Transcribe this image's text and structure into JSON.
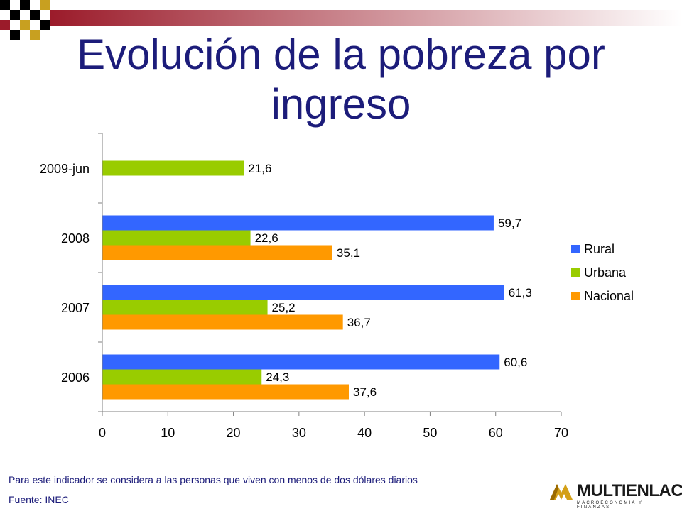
{
  "slide": {
    "title": "Evolución de la pobreza por ingreso",
    "note": "Para este indicador se considera a las personas que viven con menos de dos dólares diarios",
    "source": "Fuente: INEC",
    "logo_text": "MULTIENLACE",
    "logo_sub": "MACROECONOMIA Y FINANZAS"
  },
  "colors": {
    "title": "#1c1c7a",
    "rural": "#3366ff",
    "urbana": "#99cc00",
    "nacional": "#ff9900",
    "accent_red": "#9b1b2a",
    "accent_gold": "#c8a020"
  },
  "chart_data": {
    "type": "bar",
    "orientation": "horizontal",
    "categories": [
      "2009-jun",
      "2008",
      "2007",
      "2006"
    ],
    "series": [
      {
        "name": "Rural",
        "color": "#3366ff",
        "values": [
          null,
          59.7,
          61.3,
          60.6
        ]
      },
      {
        "name": "Urbana",
        "color": "#99cc00",
        "values": [
          21.6,
          22.6,
          25.2,
          24.3
        ]
      },
      {
        "name": "Nacional",
        "color": "#ff9900",
        "values": [
          null,
          35.1,
          36.7,
          37.6
        ]
      }
    ],
    "data_labels": true,
    "decimal_separator": ",",
    "xlim": [
      0,
      70
    ],
    "xticks": [
      0,
      10,
      20,
      30,
      40,
      50,
      60,
      70
    ],
    "legend_position": "right",
    "grid": false,
    "title": "",
    "xlabel": "",
    "ylabel": ""
  }
}
